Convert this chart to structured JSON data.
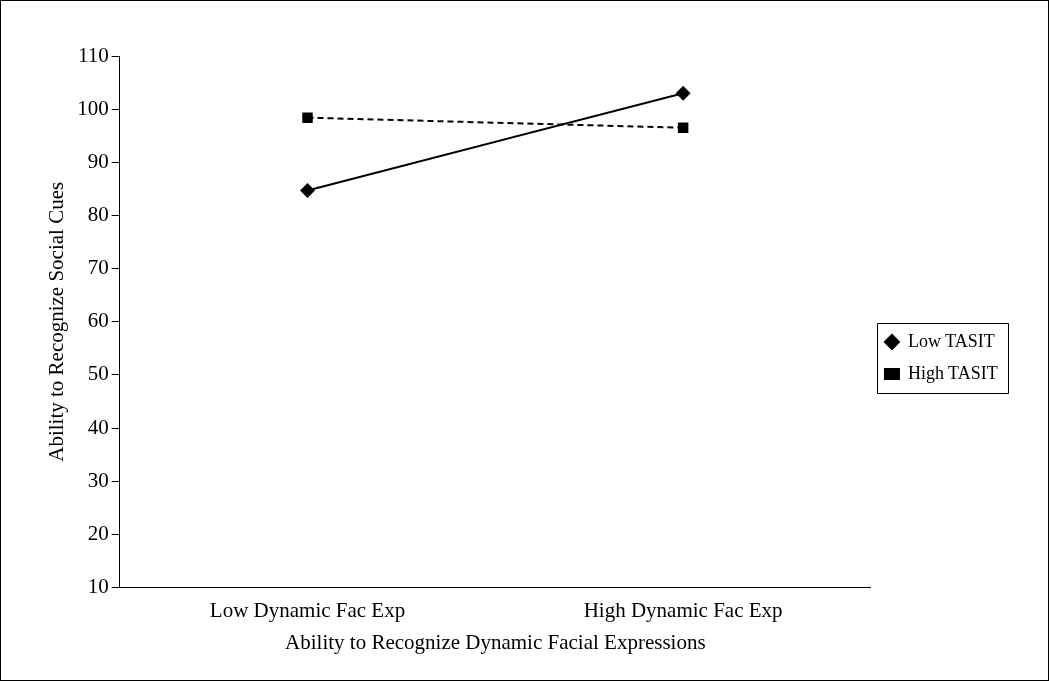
{
  "chart_data": {
    "type": "line",
    "xlabel": "Ability to Recognize Dynamic Facial Expressions",
    "ylabel": "Ability to Recognize Social Cues",
    "categories": [
      "Low Dynamic Fac Exp",
      "High Dynamic Fac Exp"
    ],
    "series": [
      {
        "name": "Low TASIT",
        "color": "#000000",
        "values": [
          84.7,
          103
        ],
        "marker": "diamond",
        "line_style": "solid"
      },
      {
        "name": "High TASIT",
        "color": "#000000",
        "values": [
          98.4,
          96.5
        ],
        "marker": "square",
        "line_style": "dashed"
      }
    ],
    "ylim": [
      10,
      110
    ],
    "yticks": [
      10,
      20,
      30,
      40,
      50,
      60,
      70,
      80,
      90,
      100,
      110
    ],
    "grid": false,
    "legend": "right"
  }
}
